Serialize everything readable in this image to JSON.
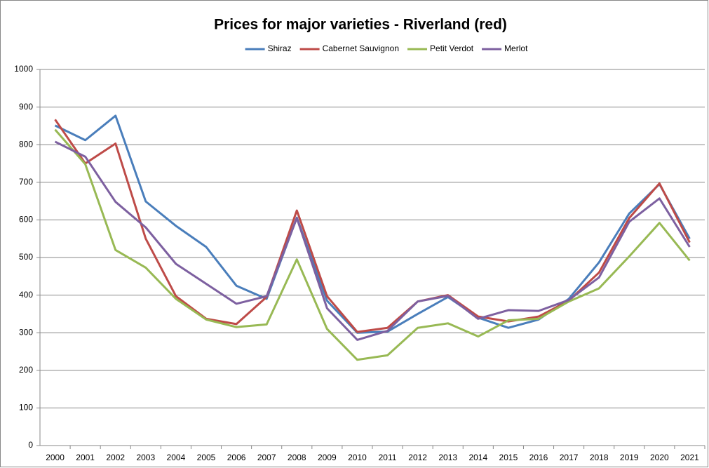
{
  "chart_data": {
    "type": "line",
    "title": "Prices for major varieties - Riverland (red)",
    "categories": [
      "2000",
      "2001",
      "2002",
      "2003",
      "2004",
      "2005",
      "2006",
      "2007",
      "2008",
      "2009",
      "2010",
      "2011",
      "2012",
      "2013",
      "2014",
      "2015",
      "2016",
      "2017",
      "2018",
      "2019",
      "2020",
      "2021"
    ],
    "series": [
      {
        "name": "Shiraz",
        "color": "#4a7ebb",
        "values": [
          851,
          812,
          877,
          649,
          584,
          528,
          425,
          390,
          606,
          385,
          300,
          303,
          350,
          395,
          340,
          313,
          335,
          390,
          487,
          617,
          695,
          550
        ]
      },
      {
        "name": "Cabernet Sauvignon",
        "color": "#be4b48",
        "values": [
          867,
          750,
          803,
          550,
          397,
          337,
          323,
          395,
          625,
          397,
          302,
          313,
          383,
          400,
          343,
          330,
          343,
          385,
          460,
          605,
          697,
          540
        ]
      },
      {
        "name": "Petit Verdot",
        "color": "#98b954",
        "values": [
          840,
          748,
          520,
          473,
          390,
          335,
          315,
          322,
          495,
          310,
          228,
          240,
          313,
          325,
          290,
          333,
          337,
          383,
          418,
          503,
          592,
          492
        ]
      },
      {
        "name": "Merlot",
        "color": "#7d60a0",
        "values": [
          808,
          768,
          648,
          580,
          483,
          430,
          377,
          397,
          605,
          365,
          281,
          305,
          383,
          398,
          337,
          360,
          358,
          387,
          447,
          595,
          657,
          528
        ]
      }
    ],
    "ylim": [
      0,
      1000
    ],
    "yticks": [
      0,
      100,
      200,
      300,
      400,
      500,
      600,
      700,
      800,
      900,
      1000
    ],
    "grid": true,
    "legend": "top"
  }
}
